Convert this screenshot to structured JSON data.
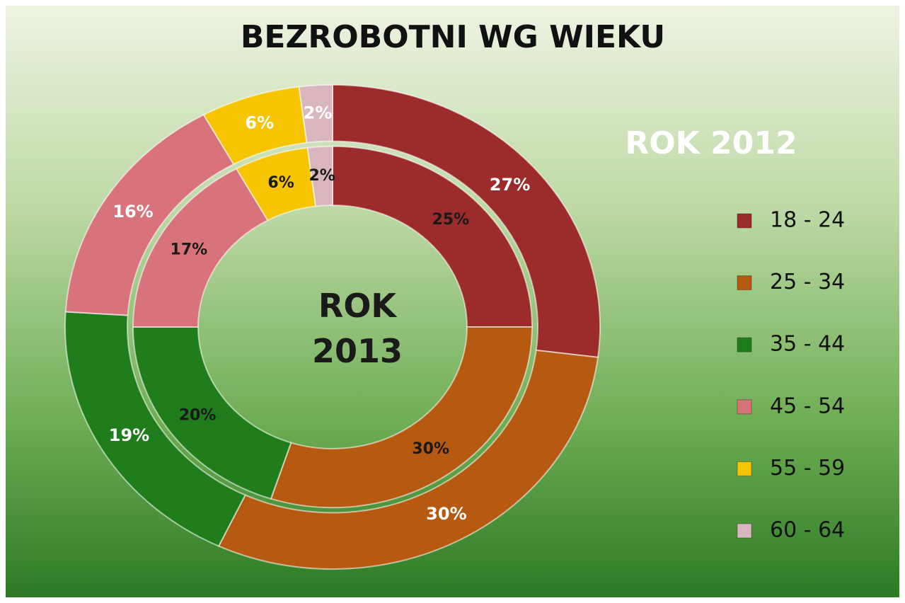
{
  "chart_data": {
    "type": "donut",
    "title": "BEZROBOTNI WG WIEKU",
    "categories": [
      "18 - 24",
      "25 - 34",
      "35 - 44",
      "45 - 54",
      "55 - 59",
      "60 - 64"
    ],
    "colors": [
      "#9c2b2b",
      "#b65a12",
      "#1f7d1c",
      "#d9737b",
      "#f6c400",
      "#d9b6be"
    ],
    "series": [
      {
        "name": "ROK 2012",
        "values": [
          27,
          30,
          19,
          16,
          6,
          2
        ],
        "value_labels": [
          "27%",
          "30%",
          "19%",
          "16%",
          "6%",
          "2%"
        ]
      },
      {
        "name": "ROK 2013",
        "values": [
          25,
          30,
          20,
          17,
          6,
          2
        ],
        "value_labels": [
          "25%",
          "30%",
          "20%",
          "17%",
          "6%",
          "2%"
        ]
      }
    ]
  }
}
